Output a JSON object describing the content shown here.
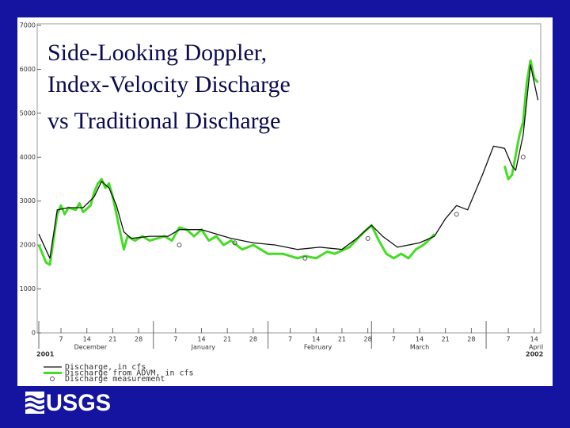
{
  "chart_data": {
    "type": "line",
    "title_lines": [
      "Side-Looking Doppler,",
      "Index-Velocity Discharge",
      "vs Traditional Discharge"
    ],
    "xlim": [
      0,
      136
    ],
    "ylim": [
      0,
      7000
    ],
    "yticks": [
      0,
      1000,
      2000,
      3000,
      4000,
      5000,
      6000,
      7000
    ],
    "xticks": [
      {
        "value": 6,
        "label": "7"
      },
      {
        "value": 13,
        "label": "14"
      },
      {
        "value": 20,
        "label": "21"
      },
      {
        "value": 27,
        "label": "28"
      },
      {
        "value": 37,
        "label": "7"
      },
      {
        "value": 44,
        "label": "14"
      },
      {
        "value": 51,
        "label": "21"
      },
      {
        "value": 58,
        "label": "28"
      },
      {
        "value": 68,
        "label": "7"
      },
      {
        "value": 75,
        "label": "14"
      },
      {
        "value": 82,
        "label": "21"
      },
      {
        "value": 89,
        "label": "28"
      },
      {
        "value": 96,
        "label": "7"
      },
      {
        "value": 103,
        "label": "14"
      },
      {
        "value": 110,
        "label": "21"
      },
      {
        "value": 117,
        "label": "28"
      },
      {
        "value": 127,
        "label": "7"
      },
      {
        "value": 134,
        "label": "14"
      }
    ],
    "month_starts": [
      0,
      31,
      62,
      90,
      121
    ],
    "month_labels": [
      {
        "value": 14,
        "label": "December"
      },
      {
        "value": 44.5,
        "label": "January"
      },
      {
        "value": 75.5,
        "label": "February"
      },
      {
        "value": 103,
        "label": "March"
      },
      {
        "value": 134.5,
        "label": "April"
      }
    ],
    "start_year": "2001",
    "end_year": "2002",
    "series": [
      {
        "name": "Discharge, in cfs",
        "color": "#111111",
        "x": [
          0,
          3,
          5,
          8,
          12,
          15,
          17,
          19,
          21,
          23,
          25,
          30,
          35,
          38,
          44,
          48,
          52,
          58,
          64,
          70,
          76,
          82,
          86,
          90,
          93,
          97,
          103,
          107,
          110,
          113,
          116,
          120,
          123,
          126,
          128,
          129,
          131,
          133,
          135
        ],
        "values": [
          2250,
          1700,
          2800,
          2850,
          2850,
          3100,
          3450,
          3300,
          2900,
          2300,
          2150,
          2200,
          2200,
          2350,
          2350,
          2250,
          2150,
          2050,
          2000,
          1900,
          1950,
          1900,
          2150,
          2450,
          2200,
          1950,
          2050,
          2200,
          2600,
          2900,
          2800,
          3600,
          4250,
          4200,
          3800,
          3700,
          4500,
          6100,
          5300
        ]
      },
      {
        "name": "Discharge from ADVM, in cfs",
        "color": "#44dd22",
        "x": [
          0,
          2,
          3,
          5,
          6,
          7,
          8,
          10,
          11,
          12,
          14,
          15,
          16,
          17,
          18,
          19,
          20,
          21,
          22,
          23,
          24,
          26,
          28,
          30,
          34,
          36,
          38,
          40,
          42,
          44,
          46,
          48,
          50,
          52,
          55,
          58,
          62,
          66,
          70,
          72,
          75,
          78,
          80,
          84,
          88,
          90,
          92,
          94,
          96,
          98,
          100,
          102,
          104,
          106,
          107,
          116,
          126,
          127,
          128,
          130,
          131,
          132,
          133,
          134,
          135
        ],
        "values": [
          2000,
          1600,
          1550,
          2700,
          2900,
          2700,
          2850,
          2800,
          2950,
          2750,
          2900,
          3200,
          3400,
          3500,
          3300,
          3400,
          3100,
          2700,
          2300,
          1900,
          2200,
          2100,
          2200,
          2100,
          2200,
          2100,
          2400,
          2350,
          2200,
          2350,
          2100,
          2200,
          2000,
          2100,
          1900,
          2000,
          1800,
          1800,
          1700,
          1750,
          1700,
          1850,
          1800,
          1950,
          2300,
          2450,
          2100,
          1800,
          1700,
          1800,
          1700,
          1900,
          2000,
          2150,
          2250,
          null,
          3800,
          3500,
          3600,
          4500,
          4800,
          5700,
          6200,
          5800,
          5700
        ]
      },
      {
        "name": "Discharge measurement",
        "color": "#555555",
        "marker": "circle",
        "x": [
          38,
          53,
          72,
          89,
          113,
          131
        ],
        "values": [
          2000,
          2050,
          1700,
          2150,
          2700,
          4000
        ]
      }
    ]
  },
  "logo": "USGS"
}
